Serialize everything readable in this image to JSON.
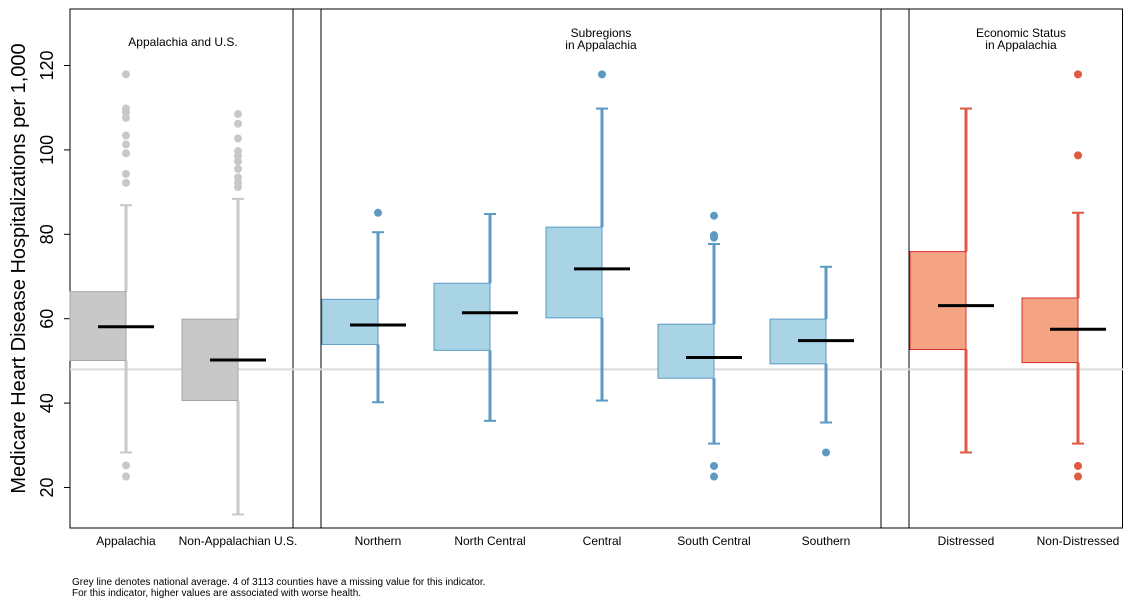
{
  "chart_data": {
    "type": "boxplot",
    "ylabel": "Medicare Heart Disease Hospitalizations per 1,000",
    "xlabel": "",
    "ylim": [
      10,
      130
    ],
    "yticks": [
      20,
      40,
      60,
      80,
      100,
      120
    ],
    "grid": false,
    "reference_line": {
      "value": 48
    },
    "panels": [
      {
        "title_lines": [
          "Appalachia and U.S."
        ],
        "color": "#c8c8c8",
        "edge": "#a6a6a6",
        "whisker": "#c8c8c8",
        "boxes": [
          {
            "label": "Appalachia",
            "whisker_low": 28.3,
            "q1": 50.1,
            "median": 58.1,
            "q3": 66.4,
            "whisker_high": 86.9,
            "outliers": [
              22.6,
              25.2,
              92.2,
              94.3,
              99.2,
              101.3,
              103.4,
              107.6,
              108.9,
              109.8,
              117.9
            ]
          },
          {
            "label": "Non-Appalachian U.S.",
            "whisker_low": 13.6,
            "q1": 40.6,
            "median": 50.2,
            "q3": 59.9,
            "whisker_high": 88.4,
            "outliers": [
              91.2,
              92.2,
              93.5,
              95.5,
              97.3,
              98.6,
              99.7,
              102.7,
              106.2,
              108.5
            ]
          }
        ]
      },
      {
        "title_lines": [
          "Subregions",
          "in Appalachia"
        ],
        "color": "#a8d4e6",
        "edge": "#5c9ac3",
        "whisker": "#5c9ac3",
        "boxes": [
          {
            "label": "Northern",
            "whisker_low": 40.2,
            "q1": 53.9,
            "median": 58.5,
            "q3": 64.6,
            "whisker_high": 80.5,
            "outliers": [
              85.1
            ]
          },
          {
            "label": "North Central",
            "whisker_low": 35.8,
            "q1": 52.5,
            "median": 61.4,
            "q3": 68.4,
            "whisker_high": 84.8,
            "outliers": []
          },
          {
            "label": "Central",
            "whisker_low": 40.6,
            "q1": 60.2,
            "median": 71.8,
            "q3": 81.7,
            "whisker_high": 109.8,
            "outliers": [
              117.9
            ]
          },
          {
            "label": "South Central",
            "whisker_low": 30.4,
            "q1": 45.9,
            "median": 50.8,
            "q3": 58.7,
            "whisker_high": 77.7,
            "outliers": [
              22.6,
              25.1,
              79.2,
              79.8,
              84.4
            ]
          },
          {
            "label": "Southern",
            "whisker_low": 35.4,
            "q1": 49.3,
            "median": 54.8,
            "q3": 59.9,
            "whisker_high": 72.3,
            "outliers": [
              28.3
            ]
          }
        ]
      },
      {
        "title_lines": [
          "Economic Status",
          "in Appalachia"
        ],
        "color": "#f4a383",
        "edge": "#d7302e",
        "whisker": "#e05a3f",
        "boxes": [
          {
            "label": "Distressed",
            "whisker_low": 28.3,
            "q1": 52.7,
            "median": 63.1,
            "q3": 75.9,
            "whisker_high": 109.8,
            "outliers": []
          },
          {
            "label": "Non-Distressed",
            "whisker_low": 30.4,
            "q1": 49.6,
            "median": 57.5,
            "q3": 64.9,
            "whisker_high": 85.1,
            "outliers": [
              22.6,
              25.1,
              98.7,
              117.9
            ]
          }
        ]
      }
    ]
  },
  "notes": {
    "line1": "Grey line denotes national average.  4 of 3113 counties have a missing value for this indicator.",
    "line2": "For this indicator, higher values are associated with worse health."
  },
  "colors": {
    "reference_line": "#d9d9d9",
    "median": "#000000",
    "frame": "#000000"
  }
}
